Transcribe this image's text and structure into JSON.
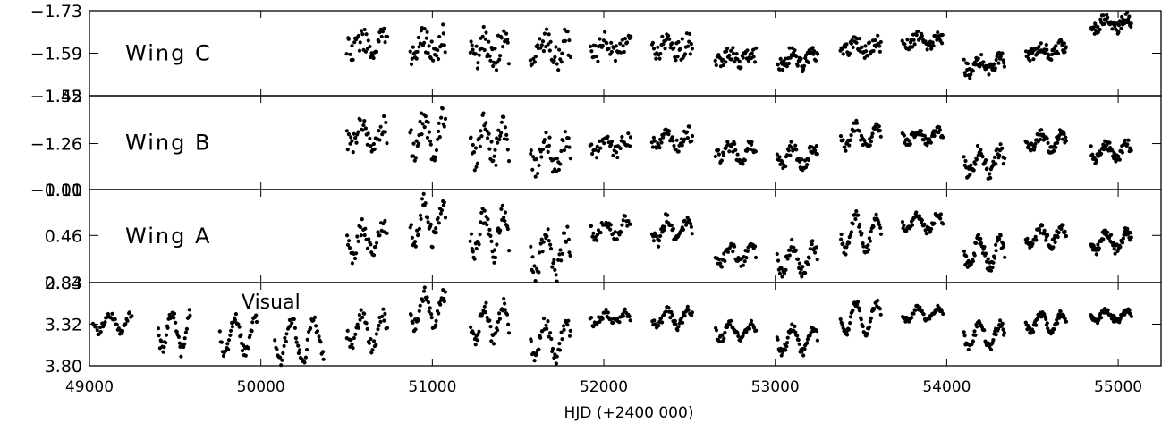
{
  "chart_data": {
    "type": "scatter",
    "xlabel": "HJD (+2400 000)",
    "x_ticks": [
      49000,
      50000,
      51000,
      52000,
      53000,
      54000,
      55000
    ],
    "xlim": [
      49000,
      55250
    ],
    "marker_color": "#000000",
    "panels": [
      {
        "name": "Wing C",
        "ylim": [
          -1.45,
          -1.73
        ],
        "y_ticks": [
          -1.73,
          -1.59,
          -1.45
        ],
        "y_tick_labels": [
          "−1.73",
          "−1.59",
          "−1.45"
        ],
        "seasons": [
          {
            "start": 50500,
            "end": 50740,
            "mean": -1.615,
            "amp": 0.025,
            "noise": 0.04,
            "period": 120,
            "n": 40
          },
          {
            "start": 50870,
            "end": 51080,
            "mean": -1.61,
            "amp": 0.03,
            "noise": 0.045,
            "period": 110,
            "n": 40
          },
          {
            "start": 51220,
            "end": 51450,
            "mean": -1.6,
            "amp": 0.03,
            "noise": 0.05,
            "period": 110,
            "n": 45
          },
          {
            "start": 51570,
            "end": 51810,
            "mean": -1.6,
            "amp": 0.03,
            "noise": 0.045,
            "period": 120,
            "n": 40
          },
          {
            "start": 51920,
            "end": 52160,
            "mean": -1.61,
            "amp": 0.02,
            "noise": 0.035,
            "period": 120,
            "n": 40
          },
          {
            "start": 52280,
            "end": 52520,
            "mean": -1.61,
            "amp": 0.02,
            "noise": 0.04,
            "period": 120,
            "n": 45
          },
          {
            "start": 52650,
            "end": 52890,
            "mean": -1.58,
            "amp": 0.015,
            "noise": 0.03,
            "period": 120,
            "n": 45
          },
          {
            "start": 53010,
            "end": 53250,
            "mean": -1.57,
            "amp": 0.02,
            "noise": 0.025,
            "period": 120,
            "n": 50
          },
          {
            "start": 53380,
            "end": 53620,
            "mean": -1.61,
            "amp": 0.015,
            "noise": 0.025,
            "period": 120,
            "n": 50
          },
          {
            "start": 53740,
            "end": 53980,
            "mean": -1.63,
            "amp": 0.015,
            "noise": 0.02,
            "period": 120,
            "n": 50
          },
          {
            "start": 54100,
            "end": 54340,
            "mean": -1.55,
            "amp": 0.02,
            "noise": 0.025,
            "period": 120,
            "n": 55
          },
          {
            "start": 54460,
            "end": 54700,
            "mean": -1.6,
            "amp": 0.015,
            "noise": 0.02,
            "period": 120,
            "n": 60
          },
          {
            "start": 54840,
            "end": 55080,
            "mean": -1.69,
            "amp": 0.02,
            "noise": 0.02,
            "period": 120,
            "n": 60
          }
        ]
      },
      {
        "name": "Wing B",
        "ylim": [
          -1.01,
          -1.52
        ],
        "y_ticks": [
          -1.52,
          -1.26,
          -1.01
        ],
        "y_tick_labels": [
          "−1.52",
          "−1.26",
          "−1.01"
        ],
        "seasons": [
          {
            "start": 50500,
            "end": 50740,
            "mean": -1.3,
            "amp": 0.06,
            "noise": 0.06,
            "period": 120,
            "n": 40
          },
          {
            "start": 50870,
            "end": 51080,
            "mean": -1.3,
            "amp": 0.1,
            "noise": 0.07,
            "period": 110,
            "n": 40
          },
          {
            "start": 51220,
            "end": 51450,
            "mean": -1.27,
            "amp": 0.09,
            "noise": 0.07,
            "period": 110,
            "n": 45
          },
          {
            "start": 51570,
            "end": 51810,
            "mean": -1.21,
            "amp": 0.08,
            "noise": 0.06,
            "period": 120,
            "n": 40
          },
          {
            "start": 51920,
            "end": 52160,
            "mean": -1.25,
            "amp": 0.04,
            "noise": 0.04,
            "period": 120,
            "n": 40
          },
          {
            "start": 52280,
            "end": 52520,
            "mean": -1.28,
            "amp": 0.04,
            "noise": 0.04,
            "period": 120,
            "n": 45
          },
          {
            "start": 52650,
            "end": 52890,
            "mean": -1.22,
            "amp": 0.04,
            "noise": 0.04,
            "period": 120,
            "n": 45
          },
          {
            "start": 53010,
            "end": 53250,
            "mean": -1.19,
            "amp": 0.05,
            "noise": 0.035,
            "period": 120,
            "n": 50
          },
          {
            "start": 53380,
            "end": 53620,
            "mean": -1.3,
            "amp": 0.06,
            "noise": 0.03,
            "period": 120,
            "n": 50
          },
          {
            "start": 53740,
            "end": 53980,
            "mean": -1.3,
            "amp": 0.03,
            "noise": 0.025,
            "period": 120,
            "n": 50
          },
          {
            "start": 54100,
            "end": 54340,
            "mean": -1.16,
            "amp": 0.06,
            "noise": 0.04,
            "period": 120,
            "n": 55
          },
          {
            "start": 54460,
            "end": 54700,
            "mean": -1.27,
            "amp": 0.04,
            "noise": 0.03,
            "period": 120,
            "n": 60
          },
          {
            "start": 54840,
            "end": 55080,
            "mean": -1.22,
            "amp": 0.04,
            "noise": 0.03,
            "period": 120,
            "n": 60
          }
        ]
      },
      {
        "name": "Wing A",
        "ylim": [
          0.83,
          0.1
        ],
        "y_ticks": [
          0.1,
          0.46,
          0.83
        ],
        "y_tick_labels": [
          "0.10",
          "0.46",
          "0.83"
        ],
        "seasons": [
          {
            "start": 50500,
            "end": 50740,
            "mean": 0.5,
            "amp": 0.12,
            "noise": 0.08,
            "period": 120,
            "n": 40
          },
          {
            "start": 50870,
            "end": 51080,
            "mean": 0.35,
            "amp": 0.15,
            "noise": 0.08,
            "period": 110,
            "n": 40
          },
          {
            "start": 51220,
            "end": 51450,
            "mean": 0.45,
            "amp": 0.15,
            "noise": 0.08,
            "period": 110,
            "n": 45
          },
          {
            "start": 51570,
            "end": 51810,
            "mean": 0.6,
            "amp": 0.15,
            "noise": 0.08,
            "period": 120,
            "n": 40
          },
          {
            "start": 51920,
            "end": 52160,
            "mean": 0.4,
            "amp": 0.06,
            "noise": 0.05,
            "period": 120,
            "n": 40
          },
          {
            "start": 52280,
            "end": 52520,
            "mean": 0.42,
            "amp": 0.09,
            "noise": 0.05,
            "period": 120,
            "n": 45
          },
          {
            "start": 52650,
            "end": 52890,
            "mean": 0.6,
            "amp": 0.08,
            "noise": 0.05,
            "period": 120,
            "n": 45
          },
          {
            "start": 53010,
            "end": 53250,
            "mean": 0.64,
            "amp": 0.1,
            "noise": 0.05,
            "period": 120,
            "n": 50
          },
          {
            "start": 53380,
            "end": 53620,
            "mean": 0.44,
            "amp": 0.14,
            "noise": 0.04,
            "period": 120,
            "n": 50
          },
          {
            "start": 53740,
            "end": 53980,
            "mean": 0.36,
            "amp": 0.06,
            "noise": 0.03,
            "period": 120,
            "n": 50
          },
          {
            "start": 54100,
            "end": 54340,
            "mean": 0.6,
            "amp": 0.1,
            "noise": 0.05,
            "period": 120,
            "n": 55
          },
          {
            "start": 54460,
            "end": 54700,
            "mean": 0.47,
            "amp": 0.06,
            "noise": 0.04,
            "period": 120,
            "n": 60
          },
          {
            "start": 54840,
            "end": 55080,
            "mean": 0.5,
            "amp": 0.07,
            "noise": 0.04,
            "period": 120,
            "n": 60
          }
        ]
      },
      {
        "name": "Visual",
        "ylim": [
          3.8,
          2.84
        ],
        "y_ticks": [
          2.84,
          3.32,
          3.8
        ],
        "y_tick_labels": [
          "2.84",
          "3.32",
          "3.80"
        ],
        "seasons": [
          {
            "start": 49020,
            "end": 49250,
            "mean": 3.3,
            "amp": 0.1,
            "noise": 0.04,
            "period": 130,
            "n": 40
          },
          {
            "start": 49400,
            "end": 49590,
            "mean": 3.4,
            "amp": 0.22,
            "noise": 0.08,
            "period": 110,
            "n": 40
          },
          {
            "start": 49760,
            "end": 49980,
            "mean": 3.45,
            "amp": 0.2,
            "noise": 0.06,
            "period": 120,
            "n": 45
          },
          {
            "start": 50080,
            "end": 50370,
            "mean": 3.5,
            "amp": 0.22,
            "noise": 0.08,
            "period": 130,
            "n": 50
          },
          {
            "start": 50500,
            "end": 50740,
            "mean": 3.4,
            "amp": 0.18,
            "noise": 0.08,
            "period": 120,
            "n": 40
          },
          {
            "start": 50870,
            "end": 51080,
            "mean": 3.15,
            "amp": 0.18,
            "noise": 0.08,
            "period": 110,
            "n": 40
          },
          {
            "start": 51220,
            "end": 51450,
            "mean": 3.3,
            "amp": 0.2,
            "noise": 0.08,
            "period": 110,
            "n": 45
          },
          {
            "start": 51570,
            "end": 51810,
            "mean": 3.5,
            "amp": 0.2,
            "noise": 0.08,
            "period": 120,
            "n": 40
          },
          {
            "start": 51920,
            "end": 52160,
            "mean": 3.25,
            "amp": 0.06,
            "noise": 0.05,
            "period": 120,
            "n": 40
          },
          {
            "start": 52280,
            "end": 52520,
            "mean": 3.25,
            "amp": 0.09,
            "noise": 0.05,
            "period": 120,
            "n": 45
          },
          {
            "start": 52650,
            "end": 52890,
            "mean": 3.4,
            "amp": 0.09,
            "noise": 0.05,
            "period": 120,
            "n": 45
          },
          {
            "start": 53010,
            "end": 53250,
            "mean": 3.5,
            "amp": 0.15,
            "noise": 0.05,
            "period": 120,
            "n": 50
          },
          {
            "start": 53380,
            "end": 53620,
            "mean": 3.25,
            "amp": 0.18,
            "noise": 0.04,
            "period": 120,
            "n": 50
          },
          {
            "start": 53740,
            "end": 53980,
            "mean": 3.2,
            "amp": 0.07,
            "noise": 0.03,
            "period": 120,
            "n": 50
          },
          {
            "start": 54100,
            "end": 54340,
            "mean": 3.45,
            "amp": 0.13,
            "noise": 0.05,
            "period": 120,
            "n": 55
          },
          {
            "start": 54460,
            "end": 54700,
            "mean": 3.3,
            "amp": 0.1,
            "noise": 0.04,
            "period": 120,
            "n": 60
          },
          {
            "start": 54840,
            "end": 55080,
            "mean": 3.22,
            "amp": 0.06,
            "noise": 0.04,
            "period": 120,
            "n": 60
          }
        ]
      }
    ]
  }
}
